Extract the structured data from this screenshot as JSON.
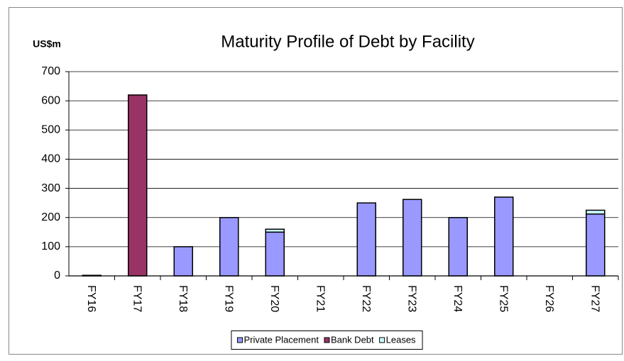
{
  "chart_data": {
    "type": "stacked-bar",
    "title": "Maturity Profile of Debt by Facility",
    "y_label": "US$m",
    "categories": [
      "FY16",
      "FY17",
      "FY18",
      "FY19",
      "FY20",
      "FY21",
      "FY22",
      "FY23",
      "FY24",
      "FY25",
      "FY26",
      "FY27"
    ],
    "series": [
      {
        "name": "Private Placement",
        "color": "#9999ff",
        "values": [
          0,
          0,
          100,
          200,
          150,
          0,
          250,
          262,
          200,
          270,
          0,
          212
        ]
      },
      {
        "name": "Bank Debt",
        "color": "#993366",
        "values": [
          0,
          620,
          0,
          0,
          0,
          0,
          0,
          0,
          0,
          0,
          0,
          0
        ]
      },
      {
        "name": "Leases",
        "color": "#ccffff",
        "values": [
          2,
          0,
          0,
          0,
          10,
          0,
          0,
          0,
          0,
          0,
          0,
          13
        ]
      }
    ],
    "ylim": [
      0,
      700
    ],
    "yticks": [
      0,
      100,
      200,
      300,
      400,
      500,
      600,
      700
    ],
    "grid": true,
    "legend": "bottom"
  }
}
